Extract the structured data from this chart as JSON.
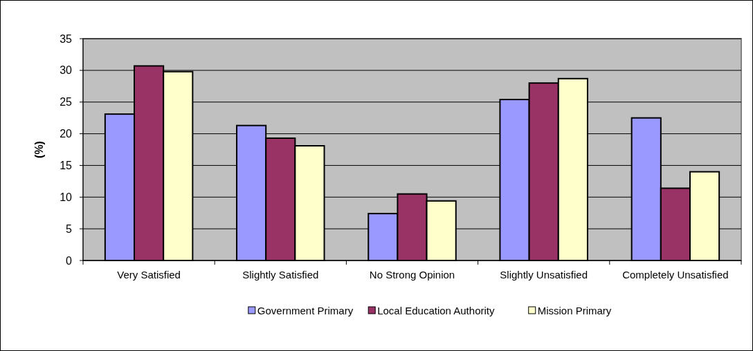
{
  "chart_data": {
    "type": "bar",
    "ylabel": "(%)",
    "categories": [
      "Very Satisfied",
      "Slightly Satisfied",
      "No Strong Opinion",
      "Slightly Unsatisfied",
      "Completely Unsatisfied"
    ],
    "series": [
      {
        "name": "Government Primary",
        "color": "#9999ff",
        "values": [
          23.1,
          21.3,
          7.4,
          25.4,
          22.5
        ]
      },
      {
        "name": "Local Education Authority",
        "color": "#993366",
        "values": [
          30.7,
          19.3,
          10.5,
          28.0,
          11.4
        ]
      },
      {
        "name": "Mission Primary",
        "color": "#ffffcc",
        "values": [
          29.8,
          18.1,
          9.4,
          28.7,
          14.0
        ]
      }
    ],
    "ylim": [
      0,
      35
    ],
    "yticks": [
      0,
      5,
      10,
      15,
      20,
      25,
      30,
      35
    ],
    "grid": "y",
    "legend": "bottom"
  }
}
